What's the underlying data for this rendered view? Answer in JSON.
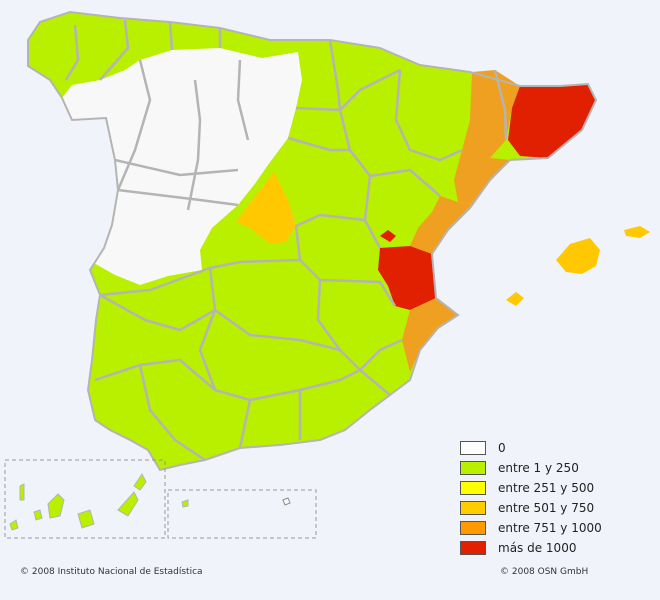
{
  "legend": [
    {
      "label": "0",
      "color": "#ffffff"
    },
    {
      "label": "entre 1 y 250",
      "color": "#b8f000"
    },
    {
      "label": "entre 251 y 500",
      "color": "#ffff00"
    },
    {
      "label": "entre 501 y 750",
      "color": "#ffcc00"
    },
    {
      "label": "entre 751 y 1000",
      "color": "#ff9900"
    },
    {
      "label": "más de 1000",
      "color": "#e02000"
    }
  ],
  "colors": {
    "zero": "#f8f8f8",
    "c1": "#b8f000",
    "c3": "#ffc800",
    "c4": "#f0a020",
    "c5": "#e02000",
    "border": "#b4b4b4",
    "inset_frame": "#999999",
    "background": "#f0f4fa"
  },
  "footer": {
    "left": "© 2008 Instituto Nacional de Estadística",
    "right": "© 2008 OSN GmbH"
  }
}
